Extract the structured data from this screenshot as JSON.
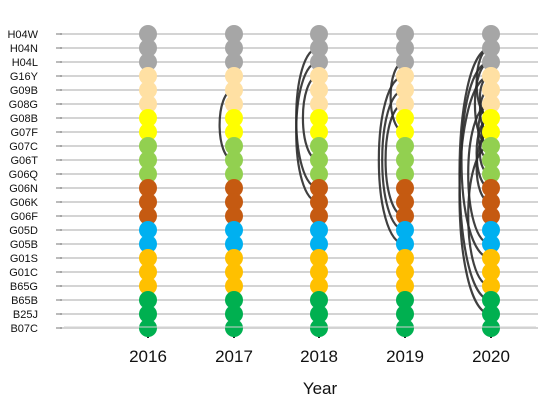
{
  "chart_data": {
    "type": "scatter",
    "xlabel": "Year",
    "categories_x": [
      "2016",
      "2017",
      "2018",
      "2019",
      "2020"
    ],
    "categories_y": [
      "H04W",
      "H04N",
      "H04L",
      "G16Y",
      "G09B",
      "G08G",
      "G08B",
      "G07F",
      "G07C",
      "G06T",
      "G06Q",
      "G06N",
      "G06K",
      "G06F",
      "G05D",
      "G05B",
      "G01S",
      "G01C",
      "B65G",
      "B65B",
      "B25J",
      "B07C"
    ],
    "groups": [
      {
        "codes": [
          "H04W",
          "H04N",
          "H04L"
        ],
        "color": "#a6a6a6"
      },
      {
        "codes": [
          "G16Y",
          "G09B",
          "G08G"
        ],
        "color": "#ffe0a3"
      },
      {
        "codes": [
          "G08B",
          "G07F"
        ],
        "color": "#ffff00"
      },
      {
        "codes": [
          "G07C",
          "G06T",
          "G06Q"
        ],
        "color": "#92d050"
      },
      {
        "codes": [
          "G06N",
          "G06K",
          "G06F"
        ],
        "color": "#c55a11"
      },
      {
        "codes": [
          "G05D",
          "G05B"
        ],
        "color": "#00b0f0"
      },
      {
        "codes": [
          "G01S",
          "G01C",
          "B65G"
        ],
        "color": "#ffc000"
      },
      {
        "codes": [
          "B65B",
          "B25J",
          "B07C"
        ],
        "color": "#00b050"
      }
    ],
    "links": [
      {
        "year": "2017",
        "pairs": [
          [
            "G09B",
            "G06T"
          ]
        ]
      },
      {
        "year": "2018",
        "pairs": [
          [
            "H04N",
            "G06N"
          ],
          [
            "H04L",
            "G06K"
          ],
          [
            "G16Y",
            "G06T"
          ]
        ]
      },
      {
        "year": "2019",
        "pairs": [
          [
            "H04L",
            "G07F"
          ],
          [
            "G16Y",
            "G05B"
          ],
          [
            "G09B",
            "G05D"
          ],
          [
            "G08G",
            "G06F"
          ]
        ]
      },
      {
        "year": "2020",
        "pairs": [
          [
            "H04N",
            "G08B"
          ],
          [
            "H04N",
            "B65B"
          ],
          [
            "H04L",
            "G07C"
          ],
          [
            "H04L",
            "G01S"
          ],
          [
            "G16Y",
            "G08B"
          ],
          [
            "G16Y",
            "B25J"
          ],
          [
            "G09B",
            "G07F"
          ],
          [
            "G08G",
            "G06T"
          ],
          [
            "G08G",
            "G05B"
          ],
          [
            "G08B",
            "G06N"
          ],
          [
            "G07F",
            "G06K"
          ],
          [
            "G07C",
            "B65G"
          ],
          [
            "G07F",
            "G06Q"
          ],
          [
            "G08B",
            "G07C"
          ]
        ]
      }
    ]
  }
}
